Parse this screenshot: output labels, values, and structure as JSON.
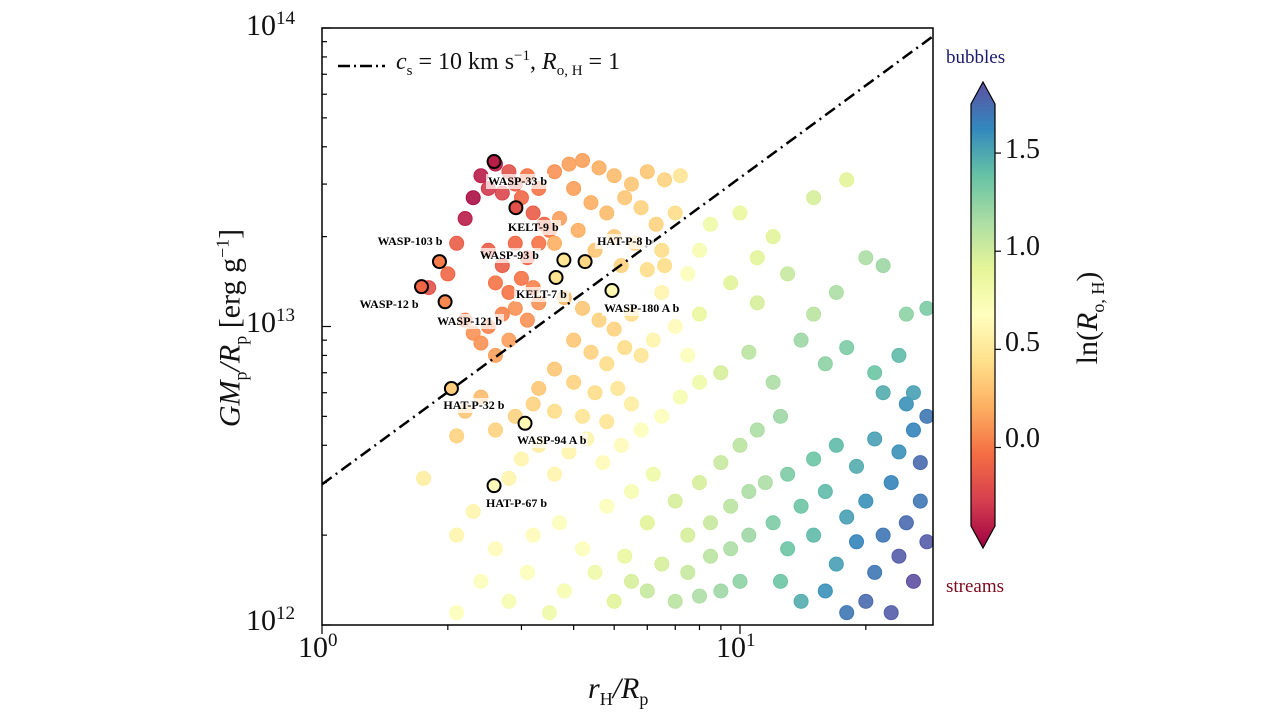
{
  "chart_data": {
    "type": "scatter",
    "x_scale": "log",
    "y_scale": "log",
    "xlim": [
      1,
      29
    ],
    "ylim": [
      1000000000000.0,
      100000000000000.0
    ],
    "grid": false,
    "xlabel": {
      "a": "r",
      "a_sub": "H",
      "b": "/R",
      "b_sub": "p"
    },
    "ylabel": {
      "a": "GM",
      "a_sub": "p",
      "b": "/R",
      "b_sub": "p",
      "c": " [erg g",
      "c_sup": "−1",
      "d": "]"
    },
    "x_ticks": [
      {
        "base": "10",
        "exp": "0",
        "value": 1
      },
      {
        "base": "10",
        "exp": "1",
        "value": 10
      }
    ],
    "y_ticks": [
      {
        "base": "10",
        "exp": "12",
        "value": 1000000000000.0
      },
      {
        "base": "10",
        "exp": "13",
        "value": 10000000000000.0
      },
      {
        "base": "10",
        "exp": "14",
        "value": 100000000000000.0
      }
    ],
    "legend": {
      "position": "top-left",
      "style": "dash-dot",
      "text": {
        "a": "c",
        "a_sub": "s",
        "b": " = 10 km s",
        "b_sup": "−1",
        "c": ", ",
        "d": "R",
        "d_sub": "o, H",
        "e": " = 1"
      }
    },
    "reference_line": {
      "points": [
        [
          1,
          2960000000000.0
        ],
        [
          29,
          94000000000000.0
        ]
      ],
      "color": "#000000"
    },
    "colorbar": {
      "colormap": "Spectral",
      "range": [
        -0.4,
        1.75
      ],
      "ticks": [
        "0.0",
        "0.5",
        "1.0",
        "1.5"
      ],
      "tick_values": [
        0,
        0.5,
        1.0,
        1.5
      ],
      "label": {
        "a": "ln(",
        "b": "R",
        "b_sub": "o, H",
        "c": ")"
      },
      "top_annotation": "bubbles",
      "bottom_annotation": "streams",
      "top_color": "#1a1a6e",
      "bottom_color": "#7a0a1e",
      "extend": "both"
    },
    "labeled_planets": [
      {
        "name": "WASP-33 b",
        "x": 2.58,
        "y": 35700000000000.0,
        "c": -0.3
      },
      {
        "name": "KELT-9 b",
        "x": 2.91,
        "y": 25000000000000.0,
        "c": -0.1
      },
      {
        "name": "WASP-103 b",
        "x": 1.91,
        "y": 16500000000000.0,
        "c": 0.08
      },
      {
        "name": "WASP-12 b",
        "x": 1.73,
        "y": 13600000000000.0,
        "c": 0.0
      },
      {
        "name": "WASP-121 b",
        "x": 1.97,
        "y": 12100000000000.0,
        "c": 0.12
      },
      {
        "name": "WASP-93 b",
        "x": 3.79,
        "y": 16700000000000.0,
        "c": 0.5
      },
      {
        "name": "HAT-P-8 b",
        "x": 4.26,
        "y": 16500000000000.0,
        "c": 0.42
      },
      {
        "name": "KELT-7 b",
        "x": 3.63,
        "y": 14600000000000.0,
        "c": 0.48
      },
      {
        "name": "WASP-180 A b",
        "x": 4.94,
        "y": 13200000000000.0,
        "c": 0.62
      },
      {
        "name": "HAT-P-32 b",
        "x": 2.04,
        "y": 6200000000000.0,
        "c": 0.38
      },
      {
        "name": "WASP-94 A b",
        "x": 3.06,
        "y": 4740000000000.0,
        "c": 0.62
      },
      {
        "name": "HAT-P-67 b",
        "x": 2.58,
        "y": 2930000000000.0,
        "c": 0.66
      }
    ],
    "points": [
      [
        1.8,
        13500000000000.0,
        -0.1
      ],
      [
        2.0,
        15000000000000.0,
        0
      ],
      [
        2.1,
        19000000000000.0,
        -0.05
      ],
      [
        2.2,
        23000000000000.0,
        -0.3
      ],
      [
        2.3,
        27000000000000.0,
        -0.35
      ],
      [
        2.4,
        32000000000000.0,
        -0.3
      ],
      [
        2.5,
        29000000000000.0,
        -0.2
      ],
      [
        2.6,
        35000000000000.0,
        -0.3
      ],
      [
        2.7,
        28000000000000.0,
        -0.15
      ],
      [
        2.8,
        33000000000000.0,
        -0.1
      ],
      [
        2.9,
        30000000000000.0,
        -0.05
      ],
      [
        3.0,
        27000000000000.0,
        0
      ],
      [
        3.1,
        32000000000000.0,
        0.05
      ],
      [
        3.2,
        24000000000000.0,
        -0.05
      ],
      [
        3.3,
        29000000000000.0,
        0.05
      ],
      [
        3.4,
        22000000000000.0,
        0
      ],
      [
        2.5,
        18000000000000.0,
        -0.05
      ],
      [
        2.7,
        16000000000000.0,
        -0.05
      ],
      [
        2.9,
        19000000000000.0,
        0
      ],
      [
        3.1,
        17000000000000.0,
        0
      ],
      [
        3.3,
        19000000000000.0,
        0.05
      ],
      [
        3.5,
        21000000000000.0,
        0.05
      ],
      [
        2.6,
        14000000000000.0,
        0.05
      ],
      [
        2.8,
        13000000000000.0,
        0.05
      ],
      [
        3.0,
        14500000000000.0,
        0.05
      ],
      [
        3.2,
        13500000000000.0,
        0.1
      ],
      [
        2.2,
        10500000000000.0,
        0.1
      ],
      [
        2.3,
        9500000000000.0,
        0.15
      ],
      [
        2.4,
        8800000000000.0,
        0.15
      ],
      [
        2.5,
        10000000000000.0,
        0.1
      ],
      [
        2.7,
        11000000000000.0,
        0.1
      ],
      [
        2.9,
        11500000000000.0,
        0.15
      ],
      [
        3.1,
        10500000000000.0,
        0.15
      ],
      [
        3.3,
        12000000000000.0,
        0.15
      ],
      [
        2.6,
        8000000000000.0,
        0.2
      ],
      [
        2.8,
        9000000000000.0,
        0.2
      ],
      [
        3.6,
        33000000000000.0,
        0.15
      ],
      [
        3.9,
        35000000000000.0,
        0.2
      ],
      [
        4.2,
        36000000000000.0,
        0.2
      ],
      [
        4.6,
        34000000000000.0,
        0.25
      ],
      [
        5.0,
        32000000000000.0,
        0.3
      ],
      [
        5.5,
        30000000000000.0,
        0.35
      ],
      [
        6.0,
        33000000000000.0,
        0.35
      ],
      [
        6.6,
        31000000000000.0,
        0.4
      ],
      [
        7.2,
        32000000000000.0,
        0.5
      ],
      [
        4.0,
        29000000000000.0,
        0.2
      ],
      [
        4.4,
        26000000000000.0,
        0.25
      ],
      [
        4.8,
        24000000000000.0,
        0.3
      ],
      [
        5.3,
        27000000000000.0,
        0.35
      ],
      [
        5.8,
        25000000000000.0,
        0.4
      ],
      [
        6.3,
        22000000000000.0,
        0.4
      ],
      [
        7.0,
        24000000000000.0,
        0.45
      ],
      [
        3.7,
        23000000000000.0,
        0.2
      ],
      [
        4.1,
        21000000000000.0,
        0.25
      ],
      [
        5.0,
        20000000000000.0,
        0.35
      ],
      [
        5.6,
        19000000000000.0,
        0.4
      ],
      [
        6.5,
        18000000000000.0,
        0.45
      ],
      [
        3.6,
        19000000000000.0,
        0.25
      ],
      [
        4.5,
        18000000000000.0,
        0.35
      ],
      [
        5.2,
        16000000000000.0,
        0.4
      ],
      [
        6.0,
        15500000000000.0,
        0.45
      ],
      [
        6.6,
        16000000000000.0,
        0.45
      ],
      [
        3.8,
        12500000000000.0,
        0.3
      ],
      [
        4.2,
        11500000000000.0,
        0.35
      ],
      [
        4.6,
        10500000000000.0,
        0.4
      ],
      [
        5.0,
        9800000000000.0,
        0.4
      ],
      [
        5.5,
        11000000000000.0,
        0.45
      ],
      [
        4.0,
        9000000000000.0,
        0.35
      ],
      [
        4.4,
        8200000000000.0,
        0.4
      ],
      [
        4.8,
        7500000000000.0,
        0.45
      ],
      [
        5.3,
        8500000000000.0,
        0.45
      ],
      [
        5.8,
        8000000000000.0,
        0.5
      ],
      [
        3.6,
        7200000000000.0,
        0.35
      ],
      [
        4.0,
        6500000000000.0,
        0.4
      ],
      [
        4.5,
        6000000000000.0,
        0.45
      ],
      [
        5.1,
        6200000000000.0,
        0.5
      ],
      [
        3.3,
        6200000000000.0,
        0.35
      ],
      [
        3.2,
        5500000000000.0,
        0.4
      ],
      [
        3.6,
        5200000000000.0,
        0.45
      ],
      [
        4.2,
        5000000000000.0,
        0.5
      ],
      [
        4.8,
        4800000000000.0,
        0.5
      ],
      [
        5.5,
        5500000000000.0,
        0.55
      ],
      [
        2.2,
        5200000000000.0,
        0.35
      ],
      [
        2.4,
        5800000000000.0,
        0.3
      ],
      [
        2.6,
        4500000000000.0,
        0.4
      ],
      [
        2.9,
        5000000000000.0,
        0.4
      ],
      [
        2.1,
        4300000000000.0,
        0.4
      ],
      [
        1.75,
        3100000000000.0,
        0.55
      ],
      [
        2.1,
        2000000000000.0,
        0.6
      ],
      [
        2.3,
        2400000000000.0,
        0.6
      ],
      [
        2.8,
        3100000000000.0,
        0.6
      ],
      [
        3.0,
        3600000000000.0,
        0.6
      ],
      [
        3.3,
        4000000000000.0,
        0.55
      ],
      [
        3.6,
        3200000000000.0,
        0.6
      ],
      [
        3.9,
        3800000000000.0,
        0.6
      ],
      [
        4.3,
        4200000000000.0,
        0.6
      ],
      [
        4.7,
        3500000000000.0,
        0.65
      ],
      [
        5.2,
        4000000000000.0,
        0.65
      ],
      [
        5.8,
        4500000000000.0,
        0.7
      ],
      [
        6.5,
        5000000000000.0,
        0.7
      ],
      [
        7.2,
        5800000000000.0,
        0.75
      ],
      [
        8.0,
        6500000000000.0,
        0.8
      ],
      [
        2.6,
        1800000000000.0,
        0.65
      ],
      [
        3.2,
        2000000000000.0,
        0.65
      ],
      [
        3.7,
        2200000000000.0,
        0.7
      ],
      [
        4.2,
        1800000000000.0,
        0.7
      ],
      [
        4.8,
        2500000000000.0,
        0.7
      ],
      [
        5.5,
        2800000000000.0,
        0.75
      ],
      [
        6.2,
        3200000000000.0,
        0.8
      ],
      [
        2.4,
        1400000000000.0,
        0.7
      ],
      [
        3.1,
        1500000000000.0,
        0.7
      ],
      [
        3.8,
        1300000000000.0,
        0.75
      ],
      [
        4.5,
        1500000000000.0,
        0.8
      ],
      [
        5.3,
        1700000000000.0,
        0.85
      ],
      [
        2.1,
        1100000000000.0,
        0.7
      ],
      [
        2.8,
        1200000000000.0,
        0.75
      ],
      [
        3.5,
        1100000000000.0,
        0.8
      ],
      [
        6.0,
        2200000000000.0,
        0.9
      ],
      [
        7.0,
        2600000000000.0,
        0.95
      ],
      [
        8.0,
        3000000000000.0,
        0.95
      ],
      [
        9.0,
        3500000000000.0,
        1.0
      ],
      [
        10,
        4000000000000.0,
        1.05
      ],
      [
        11,
        4500000000000.0,
        1.1
      ],
      [
        12.5,
        5000000000000.0,
        1.15
      ],
      [
        7.5,
        2000000000000.0,
        0.95
      ],
      [
        8.5,
        2200000000000.0,
        1.0
      ],
      [
        9.5,
        2500000000000.0,
        1.05
      ],
      [
        10.5,
        2800000000000.0,
        1.1
      ],
      [
        11.5,
        3000000000000.0,
        1.1
      ],
      [
        6.5,
        1600000000000.0,
        0.95
      ],
      [
        7.5,
        1500000000000.0,
        1.0
      ],
      [
        8.5,
        1700000000000.0,
        1.05
      ],
      [
        9.5,
        1800000000000.0,
        1.1
      ],
      [
        10.5,
        2000000000000.0,
        1.15
      ],
      [
        6.0,
        1300000000000.0,
        1.0
      ],
      [
        7.0,
        1200000000000.0,
        1.05
      ],
      [
        8.0,
        1250000000000.0,
        1.1
      ],
      [
        9.0,
        1300000000000.0,
        1.15
      ],
      [
        10,
        1400000000000.0,
        1.2
      ],
      [
        5.0,
        1200000000000.0,
        0.9
      ],
      [
        5.5,
        1400000000000.0,
        0.95
      ],
      [
        12,
        2200000000000.0,
        1.25
      ],
      [
        13,
        1800000000000.0,
        1.3
      ],
      [
        14,
        2500000000000.0,
        1.3
      ],
      [
        15,
        2000000000000.0,
        1.35
      ],
      [
        16,
        2800000000000.0,
        1.35
      ],
      [
        17,
        1600000000000.0,
        1.45
      ],
      [
        18,
        2300000000000.0,
        1.45
      ],
      [
        19,
        1900000000000.0,
        1.55
      ],
      [
        20,
        2600000000000.0,
        1.5
      ],
      [
        21,
        1500000000000.0,
        1.6
      ],
      [
        22,
        2000000000000.0,
        1.6
      ],
      [
        23,
        3000000000000.0,
        1.55
      ],
      [
        24,
        1700000000000.0,
        1.7
      ],
      [
        25,
        2200000000000.0,
        1.65
      ],
      [
        26,
        1400000000000.0,
        1.75
      ],
      [
        27,
        2600000000000.0,
        1.6
      ],
      [
        28,
        1900000000000.0,
        1.7
      ],
      [
        12.5,
        1400000000000.0,
        1.3
      ],
      [
        14,
        1200000000000.0,
        1.4
      ],
      [
        16,
        1300000000000.0,
        1.5
      ],
      [
        18,
        1100000000000.0,
        1.6
      ],
      [
        20,
        1200000000000.0,
        1.65
      ],
      [
        23,
        1100000000000.0,
        1.7
      ],
      [
        13,
        3200000000000.0,
        1.25
      ],
      [
        15,
        3600000000000.0,
        1.3
      ],
      [
        17,
        4000000000000.0,
        1.35
      ],
      [
        19,
        3400000000000.0,
        1.4
      ],
      [
        21,
        4200000000000.0,
        1.45
      ],
      [
        24,
        3800000000000.0,
        1.5
      ],
      [
        26,
        4500000000000.0,
        1.55
      ],
      [
        28,
        5000000000000.0,
        1.6
      ],
      [
        27,
        3500000000000.0,
        1.65
      ],
      [
        25,
        5500000000000.0,
        1.5
      ],
      [
        22,
        6000000000000.0,
        1.4
      ],
      [
        9,
        7000000000000.0,
        0.95
      ],
      [
        10.5,
        8200000000000.0,
        1.05
      ],
      [
        12,
        6500000000000.0,
        1.1
      ],
      [
        14,
        9000000000000.0,
        1.15
      ],
      [
        16,
        7500000000000.0,
        1.2
      ],
      [
        18,
        8500000000000.0,
        1.25
      ],
      [
        21,
        7000000000000.0,
        1.3
      ],
      [
        24,
        8000000000000.0,
        1.35
      ],
      [
        26,
        6000000000000.0,
        1.45
      ],
      [
        8,
        11000000000000.0,
        0.85
      ],
      [
        9.5,
        14000000000000.0,
        0.9
      ],
      [
        11,
        12000000000000.0,
        0.95
      ],
      [
        13,
        15000000000000.0,
        1.0
      ],
      [
        15,
        11000000000000.0,
        1.05
      ],
      [
        17,
        13000000000000.0,
        1.1
      ],
      [
        20,
        17000000000000.0,
        1.1
      ],
      [
        22,
        16000000000000.0,
        1.15
      ],
      [
        25,
        11000000000000.0,
        1.2
      ],
      [
        28,
        11500000000000.0,
        1.25
      ],
      [
        8.5,
        22000000000000.0,
        0.8
      ],
      [
        10,
        24000000000000.0,
        0.85
      ],
      [
        12,
        20000000000000.0,
        0.9
      ],
      [
        15,
        27000000000000.0,
        0.95
      ],
      [
        18,
        31000000000000.0,
        0.9
      ],
      [
        11,
        17000000000000.0,
        0.9
      ],
      [
        7.5,
        15000000000000.0,
        0.7
      ],
      [
        8,
        18000000000000.0,
        0.75
      ],
      [
        6.5,
        13000000000000.0,
        0.6
      ],
      [
        7,
        10000000000000.0,
        0.65
      ],
      [
        6.2,
        9000000000000.0,
        0.6
      ],
      [
        7.5,
        8000000000000.0,
        0.7
      ]
    ]
  }
}
